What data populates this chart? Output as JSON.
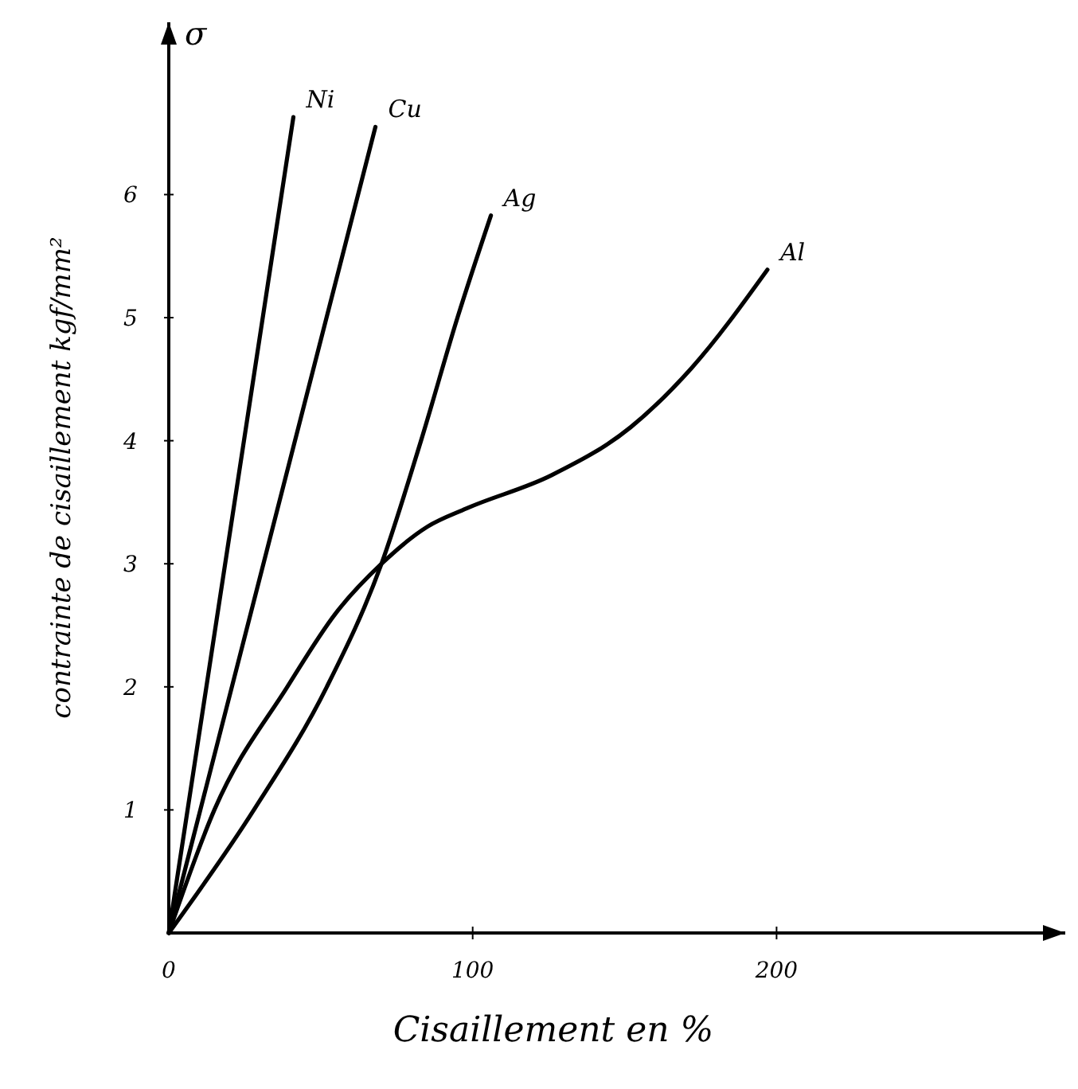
{
  "chart_data": {
    "type": "line",
    "xlabel": "Cisaillement en %",
    "ylabel": "contrainte de cisaillement  kgf/mm²",
    "annotations": [
      "σ"
    ],
    "xlim": [
      0,
      295
    ],
    "ylim": [
      0,
      7.4
    ],
    "xticks": [
      0,
      100,
      200
    ],
    "yticks": [
      1,
      2,
      3,
      4,
      5,
      6
    ],
    "grid": false,
    "marker": "none",
    "line_style": "solid",
    "series": [
      {
        "name": "Ni",
        "color": "#000000",
        "x": [
          0,
          41
        ],
        "values": [
          0,
          6.63
        ]
      },
      {
        "name": "Cu",
        "color": "#000000",
        "x": [
          0,
          68
        ],
        "values": [
          0,
          6.55
        ]
      },
      {
        "name": "Ag",
        "color": "#000000",
        "x": [
          0,
          28,
          52,
          70,
          83,
          95,
          106
        ],
        "values": [
          0,
          1,
          2,
          3,
          4,
          5,
          5.83
        ]
      },
      {
        "name": "Al",
        "color": "#000000",
        "x": [
          0,
          15,
          39,
          55,
          70,
          85,
          98,
          126,
          152,
          172,
          197
        ],
        "values": [
          0,
          1,
          2,
          2.6,
          3,
          3.3,
          3.45,
          3.72,
          4.11,
          4.59,
          5.39
        ]
      }
    ]
  }
}
